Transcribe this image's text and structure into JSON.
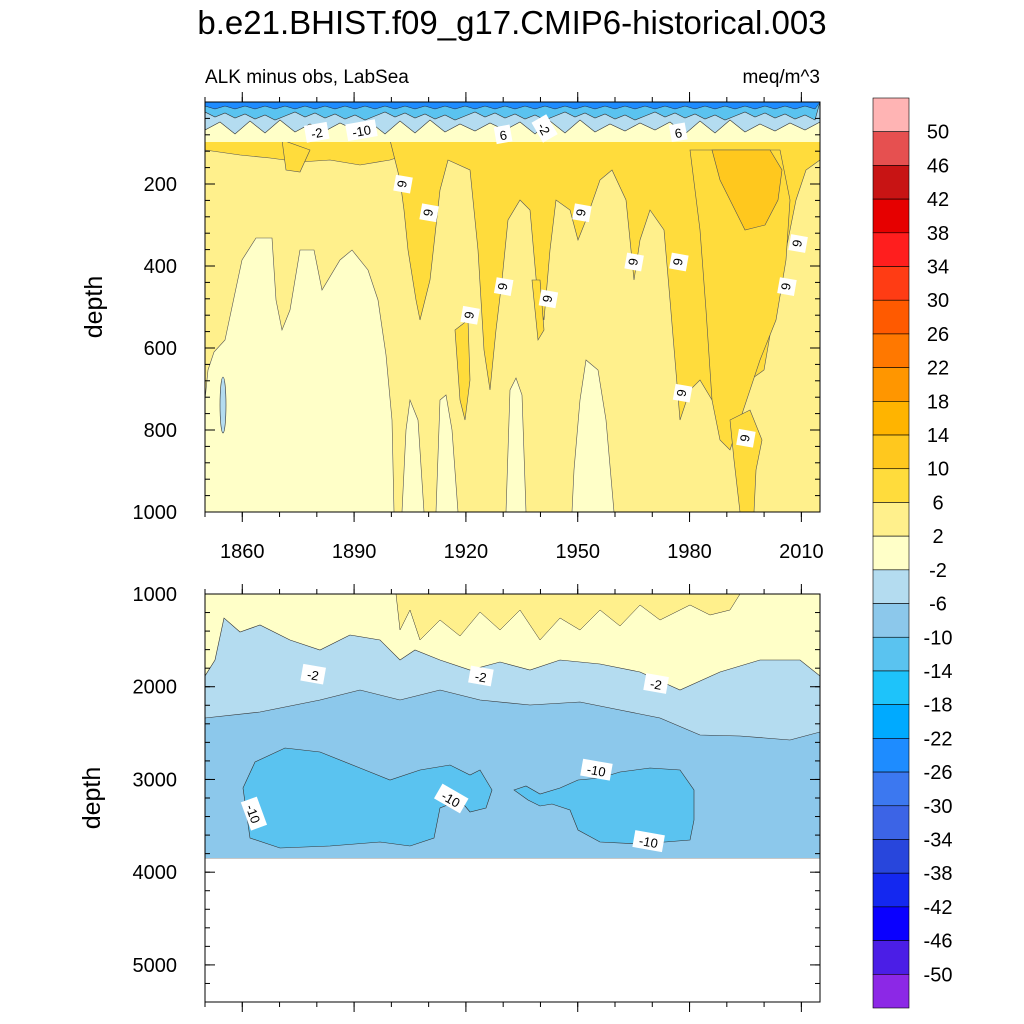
{
  "title": "b.e21.BHIST.f09_g17.CMIP6-historical.003",
  "chart_data": [
    {
      "type": "heatmap",
      "panel": "upper",
      "subtitle_left": "ALK minus obs, LabSea",
      "subtitle_right": "meq/m^3",
      "ylabel": "depth",
      "xlabel": "",
      "xlim": [
        1850,
        2015
      ],
      "ylim": [
        0,
        1000
      ],
      "y_reversed": true,
      "x_ticks": [
        1860,
        1890,
        1920,
        1950,
        1980,
        2010
      ],
      "x_tick_labels": [
        "1860",
        "1890",
        "1920",
        "1950",
        "1980",
        "2010"
      ],
      "y_ticks": [
        200,
        400,
        600,
        800,
        1000
      ],
      "y_tick_labels": [
        "200",
        "400",
        "600",
        "800",
        "1000"
      ],
      "contour_labels": [
        {
          "text": "-2",
          "x": 1880,
          "y": 75
        },
        {
          "text": "-10",
          "x": 1892,
          "y": 70
        },
        {
          "text": "6",
          "x": 1930,
          "y": 80
        },
        {
          "text": "-2",
          "x": 1941,
          "y": 65
        },
        {
          "text": "6",
          "x": 1977,
          "y": 75
        },
        {
          "text": "6",
          "x": 1903,
          "y": 200
        },
        {
          "text": "6",
          "x": 1910,
          "y": 270
        },
        {
          "text": "6",
          "x": 1951,
          "y": 270
        },
        {
          "text": "6",
          "x": 2009,
          "y": 345
        },
        {
          "text": "6",
          "x": 1965,
          "y": 390
        },
        {
          "text": "6",
          "x": 1977,
          "y": 390
        },
        {
          "text": "6",
          "x": 1930,
          "y": 450
        },
        {
          "text": "6",
          "x": 1942,
          "y": 480
        },
        {
          "text": "6",
          "x": 2006,
          "y": 450
        },
        {
          "text": "6",
          "x": 1921,
          "y": 520
        },
        {
          "text": "6",
          "x": 1978,
          "y": 710
        },
        {
          "text": "6",
          "x": 1995,
          "y": 820
        }
      ],
      "regions": [
        {
          "level": "2 to 6",
          "note": "background mid-depth"
        },
        {
          "level": "-2 to 2",
          "note": "deep western column 1850-1900"
        },
        {
          "level": "6 to 10",
          "note": "near-surface band and 1980-2000 core"
        },
        {
          "level": "below -10",
          "note": "surface layer 0-60"
        }
      ]
    },
    {
      "type": "heatmap",
      "panel": "lower",
      "ylabel": "depth",
      "xlim": [
        1850,
        2015
      ],
      "ylim": [
        1000,
        5400
      ],
      "y_reversed": true,
      "y_ticks": [
        1000,
        2000,
        3000,
        4000,
        5000
      ],
      "y_tick_labels": [
        "1000",
        "2000",
        "3000",
        "4000",
        "5000"
      ],
      "data_bottom_depth": 3850,
      "contour_labels": [
        {
          "text": "-2",
          "x": 1879,
          "y": 1870
        },
        {
          "text": "-2",
          "x": 1924,
          "y": 1890
        },
        {
          "text": "-2",
          "x": 1971,
          "y": 1970
        },
        {
          "text": "-10",
          "x": 1863,
          "y": 3370
        },
        {
          "text": "-10",
          "x": 1916,
          "y": 3210
        },
        {
          "text": "-10",
          "x": 1955,
          "y": 2900
        },
        {
          "text": "-10",
          "x": 1969,
          "y": 3670
        }
      ],
      "regions": [
        {
          "level": "-2 to 2",
          "note": "1000-1900"
        },
        {
          "level": "-6 to -2",
          "note": "1900-2400"
        },
        {
          "level": "-10 to -6",
          "note": "2400-3850"
        },
        {
          "level": "-14 to -10",
          "note": "two patches near 3000-3700"
        }
      ]
    }
  ],
  "colorbar": {
    "labels": [
      "50",
      "46",
      "42",
      "38",
      "34",
      "30",
      "26",
      "22",
      "18",
      "14",
      "10",
      "6",
      "2",
      "-2",
      "-6",
      "-10",
      "-14",
      "-18",
      "-22",
      "-26",
      "-30",
      "-34",
      "-38",
      "-42",
      "-46",
      "-50"
    ],
    "colors": [
      "#ffb4b4",
      "#e65050",
      "#c81414",
      "#e60000",
      "#ff1e1e",
      "#ff3c14",
      "#ff5a00",
      "#ff7800",
      "#ff9600",
      "#ffb400",
      "#ffc81e",
      "#ffdc3c",
      "#fff08c",
      "#ffffc8",
      "#b4dcf0",
      "#8cc8eb",
      "#5ac3f0",
      "#1ec3fa",
      "#00aaff",
      "#1e8cff",
      "#3c78f0",
      "#3c64e6",
      "#2846dc",
      "#1428f0",
      "#0a00ff",
      "#4b1ee6",
      "#8c28e6"
    ]
  },
  "colors": {
    "lvl_m14": "#5ac3f0",
    "lvl_m10": "#8cc8eb",
    "lvl_m6": "#b4dcf0",
    "lvl_m2": "#ffffc8",
    "lvl_2": "#fff08c",
    "lvl_6": "#ffdc3c",
    "lvl_10": "#ffc81e",
    "surface_dark": "#1e8cff",
    "surface_mid": "#5ac3f0"
  }
}
